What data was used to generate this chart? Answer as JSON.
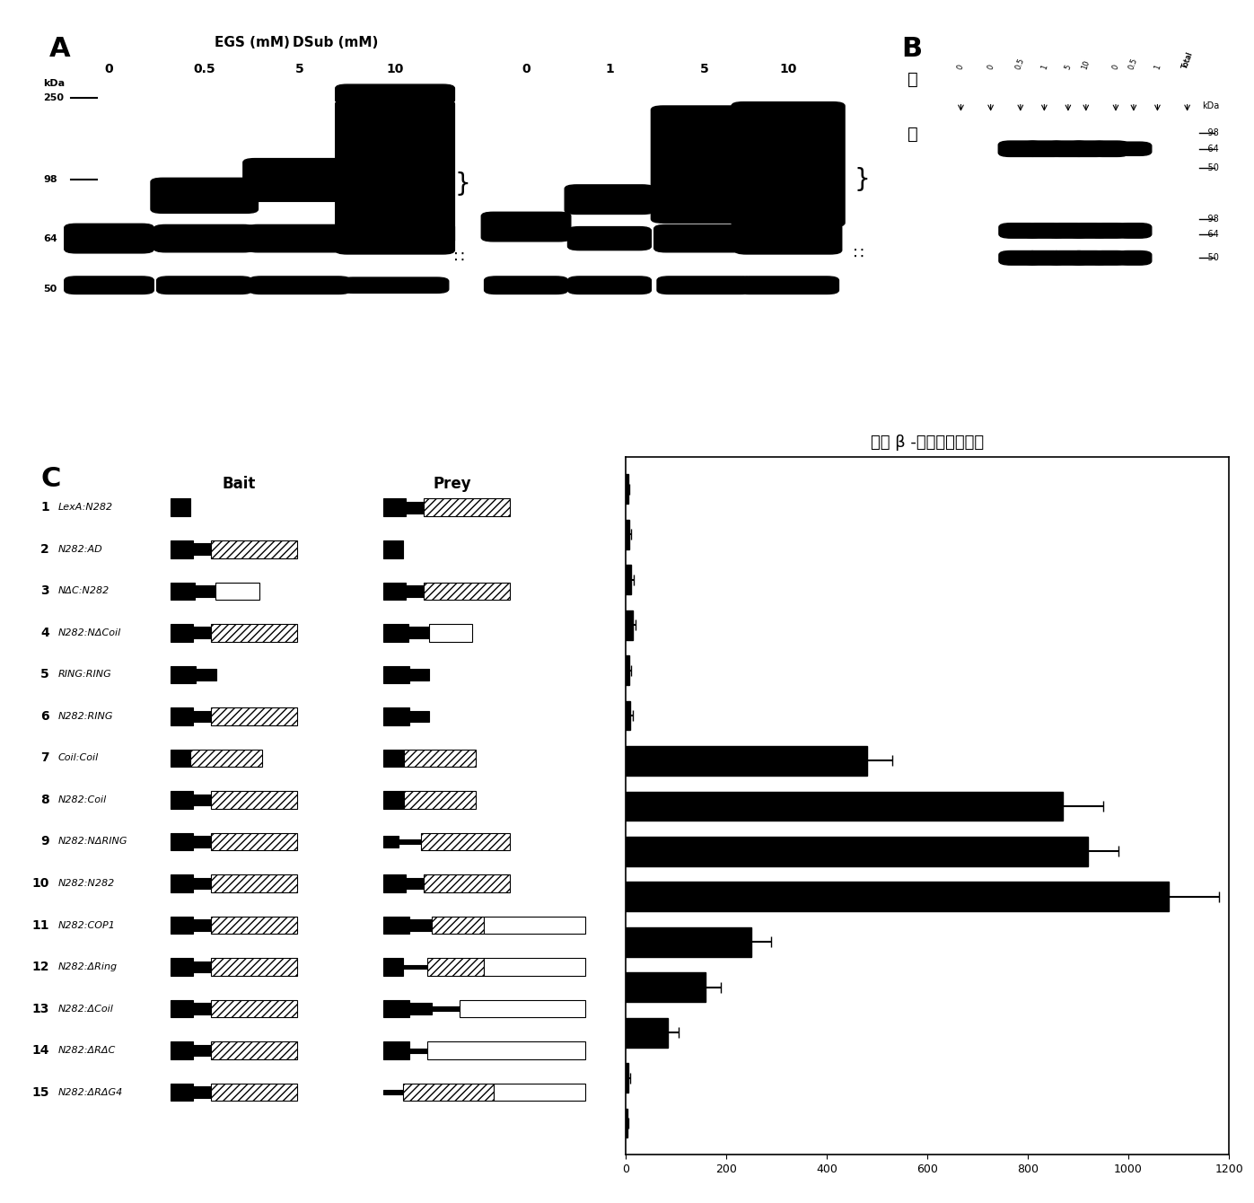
{
  "title_C": "相对 β -葡糖醋酸醂活性",
  "EGS_label": "EGS (mM)",
  "DSub_label": "DSub (mM)",
  "EGS_conc": [
    "0",
    "0.5",
    "5",
    "10"
  ],
  "DSub_conc": [
    "0",
    "1",
    "5",
    "10"
  ],
  "row_labels": [
    "LexA:N282",
    "N282:AD",
    "NΔC:N282",
    "N282:NΔCoil",
    "RING:RING",
    "N282:RING",
    "Coil:Coil",
    "N282:Coil",
    "N282:NΔRING",
    "N282:N282",
    "N282:COP1",
    "N282:ΔRing",
    "N282:ΔCoil",
    "N282:ΔRΔC",
    "N282:ΔRΔG4"
  ],
  "bar_values": [
    5,
    8,
    12,
    15,
    8,
    10,
    480,
    870,
    920,
    1080,
    250,
    160,
    85,
    6,
    4
  ],
  "bar_errors": [
    2,
    3,
    4,
    5,
    3,
    4,
    50,
    80,
    60,
    100,
    40,
    30,
    20,
    3,
    2
  ],
  "light_label": "光",
  "dark_label": "暗",
  "mw_right_light": [
    "-98",
    "-64",
    "-50"
  ],
  "mw_right_dark": [
    "-98",
    "-64",
    "-50"
  ]
}
